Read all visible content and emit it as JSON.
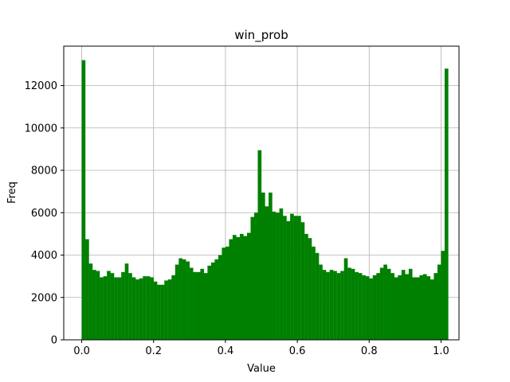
{
  "chart_data": {
    "type": "bar",
    "title": "win_prob",
    "xlabel": "Value",
    "ylabel": "Freq",
    "xlim": [
      -0.05,
      1.05
    ],
    "ylim": [
      0,
      13860
    ],
    "grid": true,
    "bar_color": "#008000",
    "grid_color": "#b0b0b0",
    "x_ticks": [
      0.0,
      0.2,
      0.4,
      0.6,
      0.8,
      1.0
    ],
    "x_tick_labels": [
      "0.0",
      "0.2",
      "0.4",
      "0.6",
      "0.8",
      "1.0"
    ],
    "y_ticks": [
      0,
      2000,
      4000,
      6000,
      8000,
      10000,
      12000
    ],
    "y_tick_labels": [
      "0",
      "2000",
      "4000",
      "6000",
      "8000",
      "10000",
      "12000"
    ],
    "bin_start": 0.0,
    "bin_width": 0.01,
    "values": [
      13200,
      4750,
      3600,
      3300,
      3250,
      2950,
      3000,
      3250,
      3150,
      2950,
      2950,
      3200,
      3600,
      3150,
      2950,
      2850,
      2900,
      3000,
      3000,
      2950,
      2750,
      2600,
      2600,
      2800,
      2850,
      3050,
      3550,
      3850,
      3800,
      3700,
      3400,
      3200,
      3200,
      3350,
      3150,
      3500,
      3650,
      3800,
      4000,
      4350,
      4400,
      4750,
      4950,
      4850,
      5000,
      4900,
      5050,
      5800,
      6000,
      8950,
      6950,
      6300,
      6950,
      6050,
      6000,
      6200,
      5850,
      5600,
      5950,
      5850,
      5850,
      5550,
      5000,
      4800,
      4400,
      4100,
      3550,
      3300,
      3200,
      3300,
      3250,
      3150,
      3250,
      3850,
      3400,
      3350,
      3200,
      3150,
      3050,
      3000,
      2900,
      3050,
      3150,
      3400,
      3550,
      3350,
      3150,
      2950,
      3050,
      3300,
      3100,
      3350,
      2950,
      2950,
      3050,
      3100,
      3000,
      2850,
      3150,
      3550,
      4200,
      12800
    ]
  }
}
